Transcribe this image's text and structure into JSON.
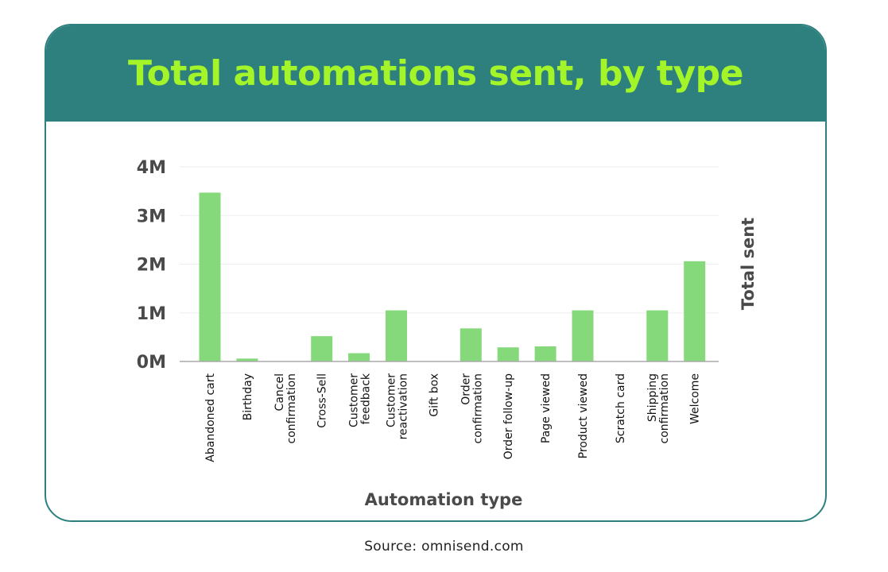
{
  "header": {
    "title": "Total automations sent, by type"
  },
  "footer": {
    "source": "Source: omnisend.com"
  },
  "colors": {
    "header_bg": "#2e807e",
    "title": "#a3f529",
    "bar": "#86d97a",
    "grid": "#eeeeee",
    "axis": "#aaaaaa"
  },
  "chart_data": {
    "type": "bar",
    "title": "Total automations sent, by type",
    "xlabel": "Automation type",
    "ylabel": "Total sent",
    "ylim": [
      0,
      4000000
    ],
    "yticks": [
      {
        "value": 0,
        "label": "0M"
      },
      {
        "value": 1000000,
        "label": "1M"
      },
      {
        "value": 2000000,
        "label": "2M"
      },
      {
        "value": 3000000,
        "label": "3M"
      },
      {
        "value": 4000000,
        "label": "4M"
      }
    ],
    "grid": true,
    "legend": "none",
    "categories": [
      [
        "Abandoned cart"
      ],
      [
        "Birthday"
      ],
      [
        "Cancel",
        "confirmation"
      ],
      [
        "Cross-Sell"
      ],
      [
        "Customer",
        "feedback"
      ],
      [
        "Customer",
        "reactivation"
      ],
      [
        "Gift box"
      ],
      [
        "Order",
        "confirmation"
      ],
      [
        "Order follow-up"
      ],
      [
        "Page viewed"
      ],
      [
        "Product viewed"
      ],
      [
        "Scratch card"
      ],
      [
        "Shipping",
        "confirmation"
      ],
      [
        "Welcome"
      ]
    ],
    "values": [
      3470000,
      60000,
      0,
      520000,
      170000,
      1050000,
      0,
      680000,
      290000,
      310000,
      1050000,
      0,
      1050000,
      2060000
    ]
  }
}
